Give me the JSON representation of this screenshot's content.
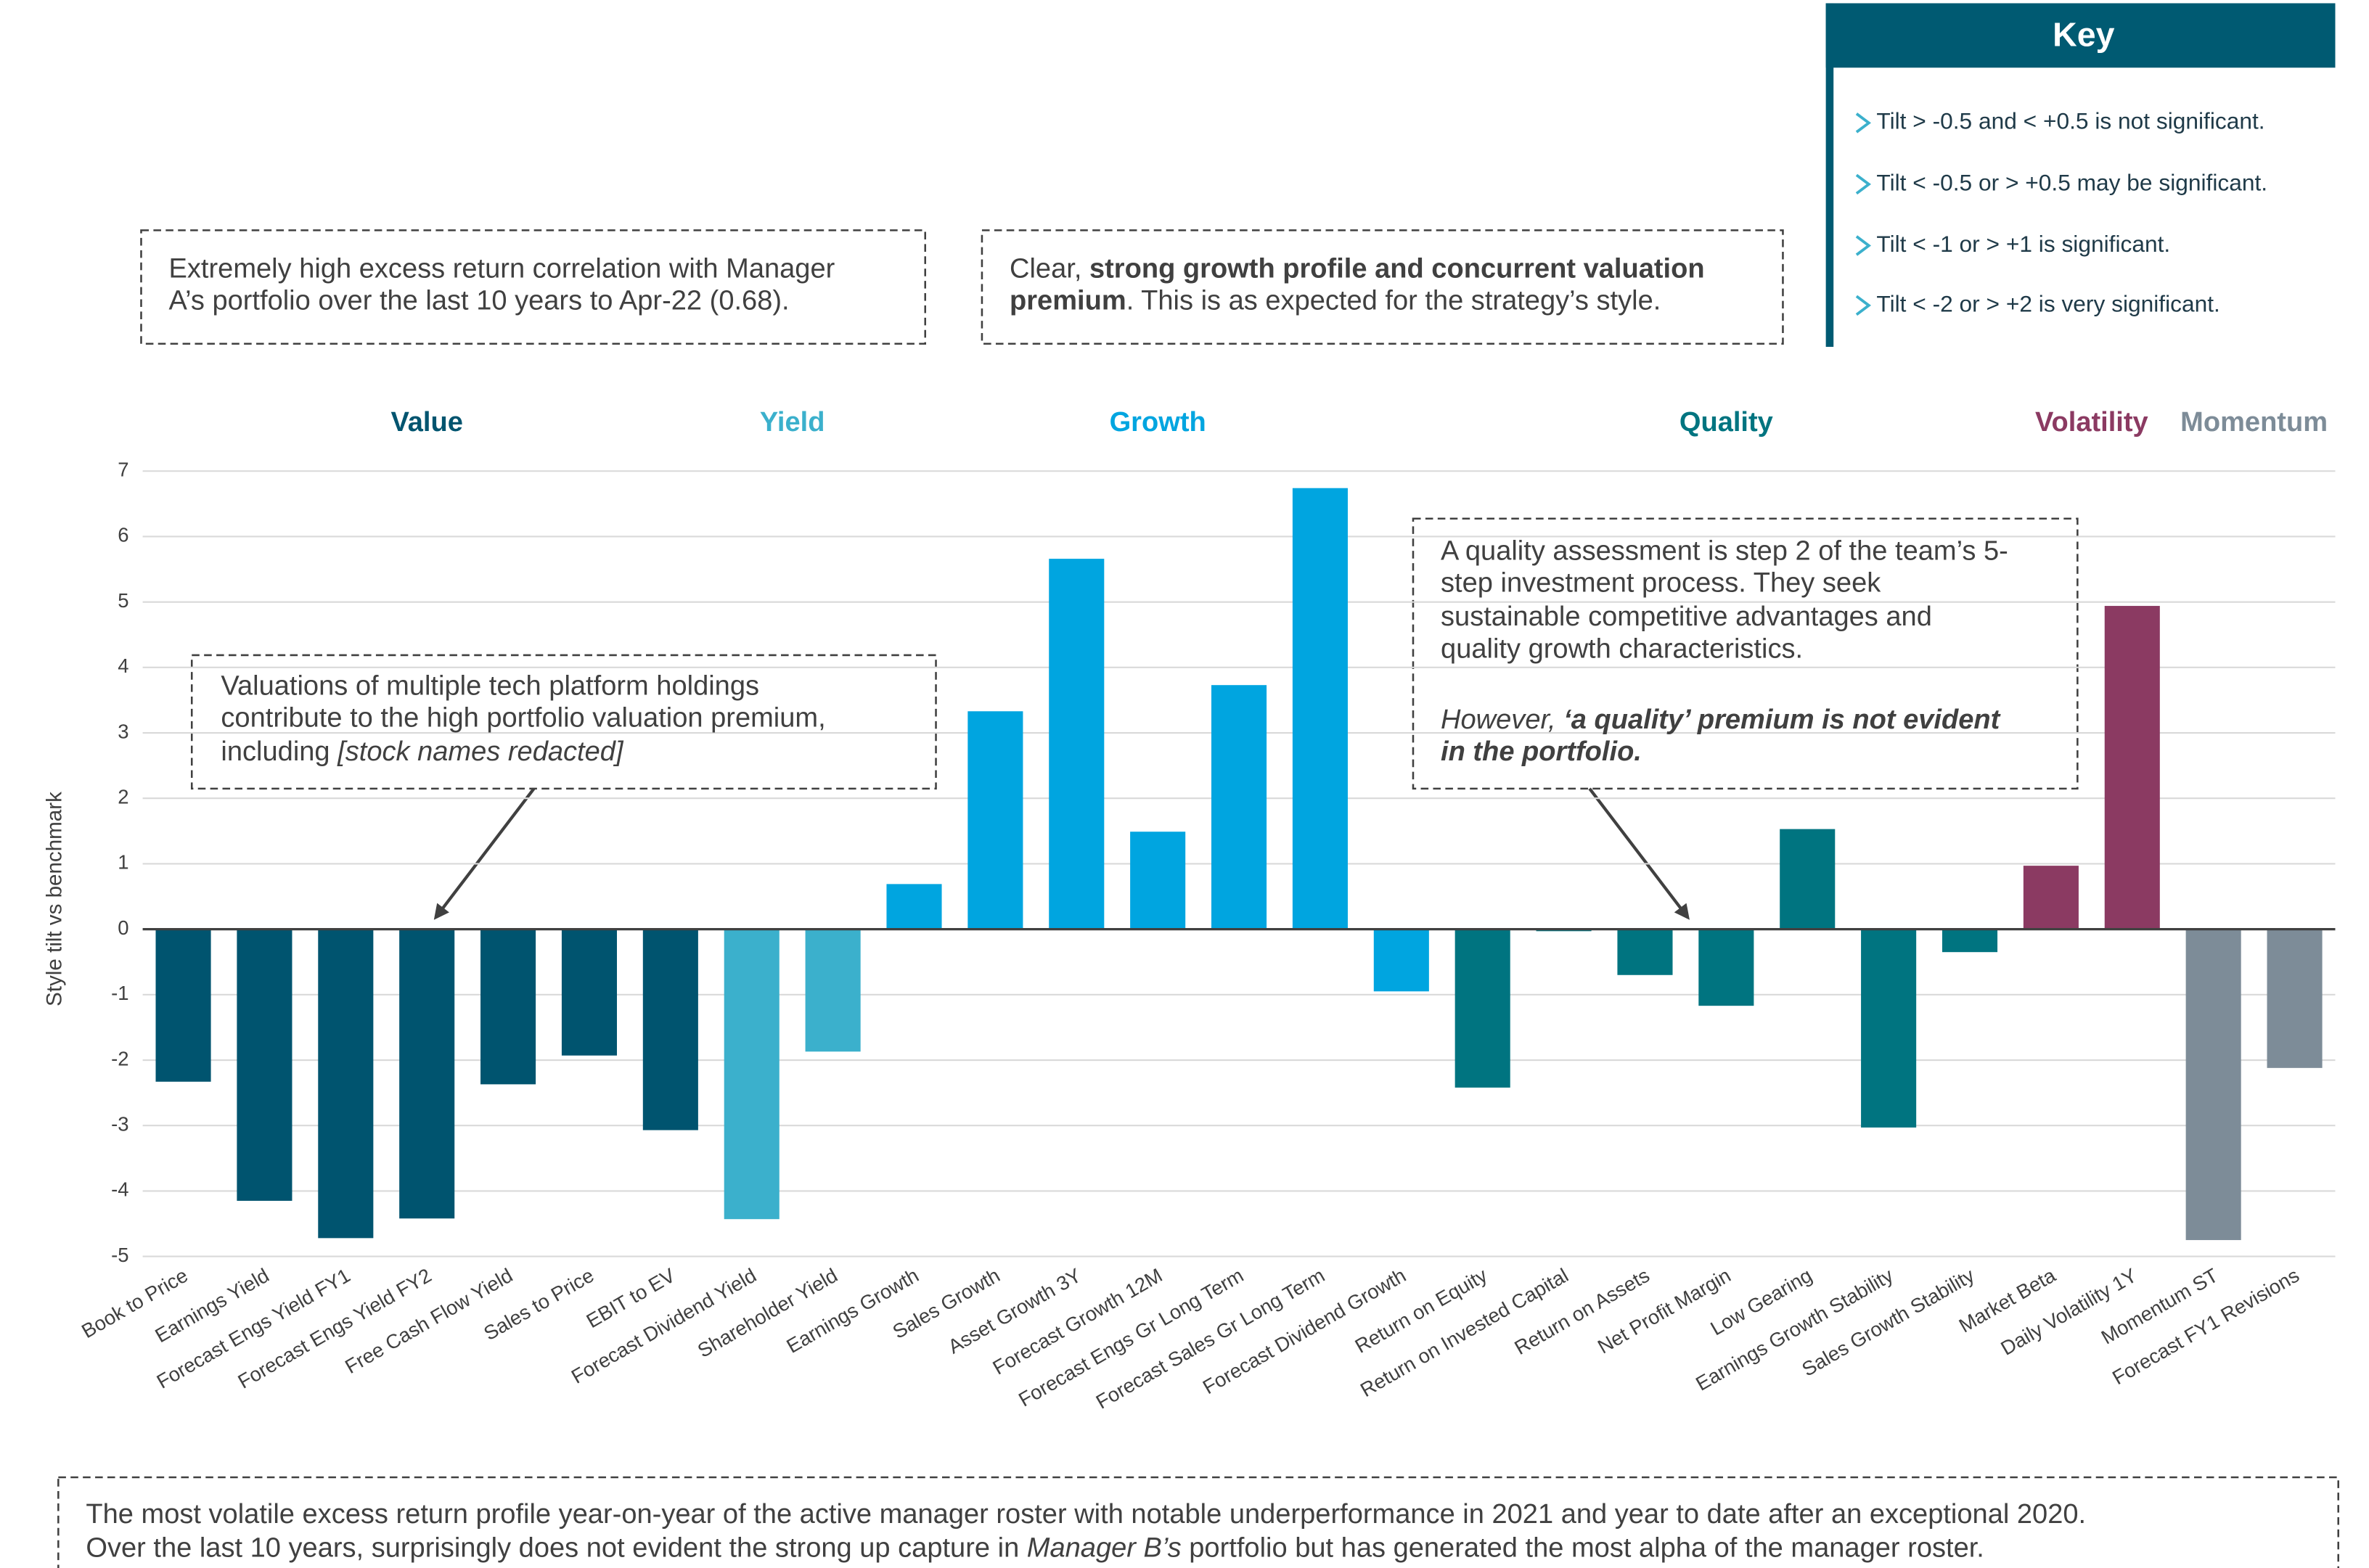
{
  "chart_data": {
    "type": "bar",
    "y_label": "Style tilt vs benchmark",
    "categories": [
      "Book to Price",
      "Earnings Yield",
      "Forecast Engs Yield FY1",
      "Forecast Engs Yield FY2",
      "Free Cash Flow Yield",
      "Sales to Price",
      "EBIT to EV",
      "Forecast Dividend Yield",
      "Shareholder Yield",
      "Earnings Growth",
      "Sales Growth",
      "Asset Growth 3Y",
      "Forecast Growth 12M",
      "Forecast Engs Gr Long Term",
      "Forecast Sales Gr Long Term",
      "Forecast Dividend Growth",
      "Return on Equity",
      "Return on Invested Capital",
      "Return on Assets",
      "Net Profit Margin",
      "Low Gearing",
      "Earnings Growth Stability",
      "Sales Growth Stability",
      "Market Beta",
      "Daily Volatility 1Y",
      "Momentum ST",
      "Forecast FY1 Revisions"
    ],
    "series": [
      {
        "name": "Value",
        "color": "#00546f",
        "values": [
          -2.33,
          -4.15,
          -4.72,
          -4.42,
          -2.37,
          -1.93,
          -3.07,
          null,
          null,
          null,
          null,
          null,
          null,
          null,
          null,
          null,
          null,
          null,
          null,
          null,
          null,
          null,
          null,
          null,
          null,
          null,
          null
        ]
      },
      {
        "name": "Yield",
        "color": "#3bb0cc",
        "values": [
          null,
          null,
          null,
          null,
          null,
          null,
          null,
          -4.43,
          -1.87,
          null,
          null,
          null,
          null,
          null,
          null,
          null,
          null,
          null,
          null,
          null,
          null,
          null,
          null,
          null,
          null,
          null,
          null
        ]
      },
      {
        "name": "Growth",
        "color": "#00a5e0",
        "values": [
          null,
          null,
          null,
          null,
          null,
          null,
          null,
          null,
          null,
          0.69,
          3.33,
          5.66,
          1.49,
          3.73,
          6.74,
          -0.95,
          null,
          null,
          null,
          null,
          null,
          null,
          null,
          null,
          null,
          null,
          null
        ]
      },
      {
        "name": "Quality",
        "color": "#007480",
        "values": [
          null,
          null,
          null,
          null,
          null,
          null,
          null,
          null,
          null,
          null,
          null,
          null,
          null,
          null,
          null,
          null,
          -2.42,
          -0.03,
          -0.7,
          -1.17,
          1.53,
          -3.03,
          -0.35,
          null,
          null,
          null,
          null
        ]
      },
      {
        "name": "Volatility",
        "color": "#8b3a62",
        "values": [
          null,
          null,
          null,
          null,
          null,
          null,
          null,
          null,
          null,
          null,
          null,
          null,
          null,
          null,
          null,
          null,
          null,
          null,
          null,
          null,
          null,
          null,
          null,
          0.97,
          4.94,
          null,
          null
        ]
      },
      {
        "name": "Momentum",
        "color": "#7d8c98",
        "values": [
          null,
          null,
          null,
          null,
          null,
          null,
          null,
          null,
          null,
          null,
          null,
          null,
          null,
          null,
          null,
          null,
          null,
          null,
          null,
          null,
          null,
          null,
          null,
          null,
          null,
          -4.75,
          -2.12
        ]
      }
    ],
    "ylim": [
      -5,
      7
    ],
    "yticks": [
      -5,
      -4,
      -3,
      -2,
      -1,
      0,
      1,
      2,
      3,
      4,
      5,
      6,
      7
    ],
    "grid": true,
    "key": {
      "title": "Key",
      "items": [
        "Tilt > -0.5 and < +0.5 is not significant.",
        "Tilt < -0.5 or > +0.5 may be significant.",
        "Tilt < -1 or > +1 is significant.",
        "Tilt < -2 or > +2 is very significant."
      ]
    },
    "annotations": [
      {
        "lines": [
          [
            {
              "text": "Extremely high excess return correlation with Manager"
            }
          ],
          [
            {
              "text": "A’s portfolio over the last 10 years to Apr-22 (0.68)."
            }
          ]
        ]
      },
      {
        "lines": [
          [
            {
              "text": "Clear, "
            },
            {
              "text": "strong growth profile and concurrent valuation",
              "bold": true
            }
          ],
          [
            {
              "text": "premium",
              "bold": true
            },
            {
              "text": ". This is as expected for the strategy’s style."
            }
          ]
        ]
      },
      {
        "lines": [
          [
            {
              "text": "Valuations of multiple tech platform holdings"
            }
          ],
          [
            {
              "text": "contribute to the high portfolio valuation premium,"
            }
          ],
          [
            {
              "text": "including "
            },
            {
              "text": "[stock names redacted]",
              "italic": true
            }
          ]
        ]
      },
      {
        "lines": [
          [
            {
              "text": "A quality assessment is step 2 of the team’s 5-"
            }
          ],
          [
            {
              "text": "step investment process. They seek"
            }
          ],
          [
            {
              "text": "sustainable competitive advantages and"
            }
          ],
          [
            {
              "text": "quality growth characteristics."
            }
          ],
          [
            {
              "text": "However, ",
              "italic": true
            },
            {
              "text": "‘a quality’ premium is not evident",
              "italic": true,
              "bold": true
            }
          ],
          [
            {
              "text": "in the portfolio.",
              "italic": true,
              "bold": true
            }
          ]
        ]
      },
      {
        "lines": [
          [
            {
              "text": "The most volatile excess return profile year-on-year of the active manager roster with notable underperformance in 2021 and year to date after an exceptional 2020."
            }
          ],
          [
            {
              "text": "Over the last 10 years, surprisingly does not evident the strong up capture in "
            },
            {
              "text": "Manager B’s",
              "italic": true
            },
            {
              "text": " portfolio but has generated the most alpha of the manager roster."
            }
          ]
        ]
      }
    ]
  }
}
